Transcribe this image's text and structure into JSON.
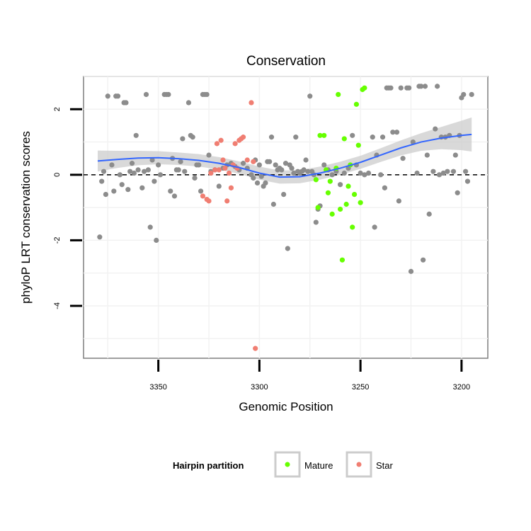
{
  "chart_data": {
    "type": "scatter",
    "title": "Conservation",
    "xlabel": "Genomic Position",
    "ylabel": "phyloP LRT conservation scores",
    "x_reversed": true,
    "xlim": [
      3387,
      3187
    ],
    "ylim": [
      -5.6,
      3.0
    ],
    "x_ticks": [
      3350,
      3300,
      3250,
      3200
    ],
    "y_ticks": [
      2,
      0,
      -2,
      -4
    ],
    "grid": true,
    "reference_line": {
      "y": 0,
      "style": "dashed"
    },
    "legend": {
      "title": "Hairpin partition",
      "position": "bottom",
      "entries": [
        {
          "label": "Mature",
          "color": "#66ff00"
        },
        {
          "label": "Star",
          "color": "#f07e72"
        }
      ]
    },
    "colors": {
      "other": "#8c8c8c",
      "Mature": "#66ff00",
      "Star": "#f07e72",
      "smooth": "#3366ff",
      "ribbon": "#cccccc"
    },
    "series": [
      {
        "name": "",
        "color": "#8c8c8c",
        "points": [
          [
            3379,
            -1.9
          ],
          [
            3378,
            -0.2
          ],
          [
            3377,
            0.1
          ],
          [
            3376,
            -0.6
          ],
          [
            3375,
            2.4
          ],
          [
            3373,
            0.3
          ],
          [
            3371,
            2.4
          ],
          [
            3372,
            -0.5
          ],
          [
            3370,
            2.4
          ],
          [
            3369,
            0.0
          ],
          [
            3368,
            -0.3
          ],
          [
            3367,
            2.2
          ],
          [
            3366,
            2.2
          ],
          [
            3365,
            -0.45
          ],
          [
            3364,
            0.1
          ],
          [
            3363,
            0.35
          ],
          [
            3362,
            0.05
          ],
          [
            3361,
            1.2
          ],
          [
            3360,
            0.15
          ],
          [
            3358,
            -0.4
          ],
          [
            3357,
            0.1
          ],
          [
            3356,
            2.45
          ],
          [
            3355,
            0.15
          ],
          [
            3354,
            -1.6
          ],
          [
            3353,
            0.45
          ],
          [
            3352,
            -0.2
          ],
          [
            3351,
            -2.0
          ],
          [
            3350,
            0.3
          ],
          [
            3349,
            0.0
          ],
          [
            3347,
            2.45
          ],
          [
            3346,
            2.45
          ],
          [
            3345,
            2.45
          ],
          [
            3344,
            -0.5
          ],
          [
            3343,
            0.5
          ],
          [
            3342,
            -0.65
          ],
          [
            3341,
            0.15
          ],
          [
            3340,
            0.15
          ],
          [
            3339,
            0.4
          ],
          [
            3338,
            1.1
          ],
          [
            3337,
            0.1
          ],
          [
            3335,
            2.2
          ],
          [
            3334,
            1.2
          ],
          [
            3333,
            1.15
          ],
          [
            3332,
            -0.1
          ],
          [
            3331,
            0.3
          ],
          [
            3330,
            0.3
          ],
          [
            3329,
            -0.5
          ],
          [
            3328,
            2.45
          ],
          [
            3327,
            2.45
          ],
          [
            3326,
            2.45
          ],
          [
            3325,
            0.6
          ],
          [
            3324,
            0.1
          ],
          [
            3322,
            0.15
          ],
          [
            3320,
            -0.35
          ],
          [
            3318,
            0.2
          ],
          [
            3316,
            0.3
          ],
          [
            3314,
            0.35
          ],
          [
            3312,
            0.25
          ],
          [
            3310,
            0.15
          ],
          [
            3308,
            0.35
          ],
          [
            3306,
            0.2
          ],
          [
            3304,
            0.0
          ],
          [
            3303,
            -0.1
          ],
          [
            3302,
            0.45
          ],
          [
            3301,
            -0.25
          ],
          [
            3300,
            0.3
          ],
          [
            3299,
            -0.05
          ],
          [
            3298,
            -0.35
          ],
          [
            3297,
            -0.25
          ],
          [
            3296,
            0.4
          ],
          [
            3295,
            0.4
          ],
          [
            3294,
            1.15
          ],
          [
            3293,
            -0.9
          ],
          [
            3292,
            0.3
          ],
          [
            3291,
            0.15
          ],
          [
            3290,
            0.2
          ],
          [
            3289,
            0.15
          ],
          [
            3288,
            -0.6
          ],
          [
            3287,
            0.35
          ],
          [
            3286,
            -2.25
          ],
          [
            3285,
            0.3
          ],
          [
            3284,
            0.2
          ],
          [
            3283,
            0.05
          ],
          [
            3282,
            1.15
          ],
          [
            3281,
            0.1
          ],
          [
            3280,
            0.05
          ],
          [
            3279,
            0.1
          ],
          [
            3278,
            0.15
          ],
          [
            3277,
            0.45
          ],
          [
            3276,
            0.1
          ],
          [
            3275,
            2.4
          ],
          [
            3274,
            0.1
          ],
          [
            3273,
            0.0
          ],
          [
            3272,
            -1.45
          ],
          [
            3271,
            -1.05
          ],
          [
            3270,
            -0.95
          ],
          [
            3268,
            0.3
          ],
          [
            3266,
            0.15
          ],
          [
            3264,
            0.0
          ],
          [
            3262,
            0.1
          ],
          [
            3260,
            -0.3
          ],
          [
            3258,
            0.05
          ],
          [
            3256,
            0.2
          ],
          [
            3254,
            1.2
          ],
          [
            3252,
            0.3
          ],
          [
            3250,
            0.05
          ],
          [
            3248,
            0.0
          ],
          [
            3246,
            0.05
          ],
          [
            3244,
            1.15
          ],
          [
            3243,
            -1.6
          ],
          [
            3242,
            0.6
          ],
          [
            3240,
            0.0
          ],
          [
            3239,
            1.15
          ],
          [
            3238,
            -0.4
          ],
          [
            3237,
            2.65
          ],
          [
            3236,
            2.65
          ],
          [
            3235,
            2.65
          ],
          [
            3234,
            1.3
          ],
          [
            3232,
            1.3
          ],
          [
            3231,
            -0.8
          ],
          [
            3230,
            2.65
          ],
          [
            3229,
            0.5
          ],
          [
            3227,
            2.65
          ],
          [
            3226,
            2.65
          ],
          [
            3225,
            -2.95
          ],
          [
            3224,
            1.0
          ],
          [
            3222,
            0.05
          ],
          [
            3221,
            2.7
          ],
          [
            3220,
            2.7
          ],
          [
            3219,
            -2.6
          ],
          [
            3218,
            2.7
          ],
          [
            3217,
            0.6
          ],
          [
            3216,
            -1.2
          ],
          [
            3214,
            0.1
          ],
          [
            3213,
            1.4
          ],
          [
            3212,
            2.7
          ],
          [
            3211,
            0.0
          ],
          [
            3210,
            1.15
          ],
          [
            3209,
            0.05
          ],
          [
            3208,
            1.15
          ],
          [
            3207,
            0.1
          ],
          [
            3206,
            1.2
          ],
          [
            3204,
            0.1
          ],
          [
            3203,
            0.6
          ],
          [
            3202,
            -0.55
          ],
          [
            3201,
            1.2
          ],
          [
            3200,
            2.35
          ],
          [
            3199,
            2.45
          ],
          [
            3198,
            0.1
          ],
          [
            3197,
            -0.2
          ],
          [
            3195,
            2.45
          ]
        ]
      },
      {
        "name": "Star",
        "color": "#f07e72",
        "points": [
          [
            3328,
            -0.65
          ],
          [
            3326,
            -0.75
          ],
          [
            3325,
            -0.8
          ],
          [
            3324,
            0.05
          ],
          [
            3322,
            0.15
          ],
          [
            3321,
            0.95
          ],
          [
            3320,
            0.15
          ],
          [
            3319,
            1.05
          ],
          [
            3318,
            0.45
          ],
          [
            3317,
            0.2
          ],
          [
            3316,
            -0.8
          ],
          [
            3315,
            0.05
          ],
          [
            3314,
            -0.4
          ],
          [
            3313,
            0.3
          ],
          [
            3312,
            0.95
          ],
          [
            3311,
            0.2
          ],
          [
            3310,
            1.05
          ],
          [
            3309,
            1.1
          ],
          [
            3308,
            1.15
          ],
          [
            3306,
            0.45
          ],
          [
            3304,
            2.2
          ],
          [
            3303,
            0.4
          ],
          [
            3302,
            -5.3
          ]
        ]
      },
      {
        "name": "Mature",
        "color": "#66ff00",
        "points": [
          [
            3272,
            -0.15
          ],
          [
            3271,
            -1.0
          ],
          [
            3270,
            1.2
          ],
          [
            3268,
            1.2
          ],
          [
            3267,
            0.15
          ],
          [
            3266,
            -0.55
          ],
          [
            3265,
            -0.2
          ],
          [
            3264,
            -1.2
          ],
          [
            3262,
            0.2
          ],
          [
            3261,
            2.45
          ],
          [
            3260,
            -1.05
          ],
          [
            3259,
            -2.6
          ],
          [
            3258,
            1.1
          ],
          [
            3257,
            -0.9
          ],
          [
            3256,
            -0.35
          ],
          [
            3255,
            0.3
          ],
          [
            3254,
            -1.6
          ],
          [
            3253,
            -0.6
          ],
          [
            3252,
            2.15
          ],
          [
            3251,
            0.9
          ],
          [
            3250,
            -0.85
          ],
          [
            3249,
            2.6
          ],
          [
            3248,
            2.65
          ]
        ]
      }
    ],
    "smooth_fit": {
      "method": "loess",
      "x": [
        3380,
        3370,
        3360,
        3350,
        3340,
        3330,
        3320,
        3310,
        3300,
        3290,
        3280,
        3270,
        3260,
        3250,
        3240,
        3230,
        3220,
        3210,
        3200,
        3195
      ],
      "y": [
        0.42,
        0.47,
        0.51,
        0.52,
        0.49,
        0.44,
        0.35,
        0.22,
        0.05,
        -0.07,
        -0.06,
        0.05,
        0.2,
        0.38,
        0.6,
        0.82,
        1.0,
        1.12,
        1.2,
        1.23
      ],
      "ci_half_width": [
        0.32,
        0.26,
        0.22,
        0.2,
        0.19,
        0.19,
        0.19,
        0.19,
        0.2,
        0.2,
        0.2,
        0.2,
        0.2,
        0.2,
        0.21,
        0.23,
        0.27,
        0.34,
        0.45,
        0.52
      ]
    }
  }
}
